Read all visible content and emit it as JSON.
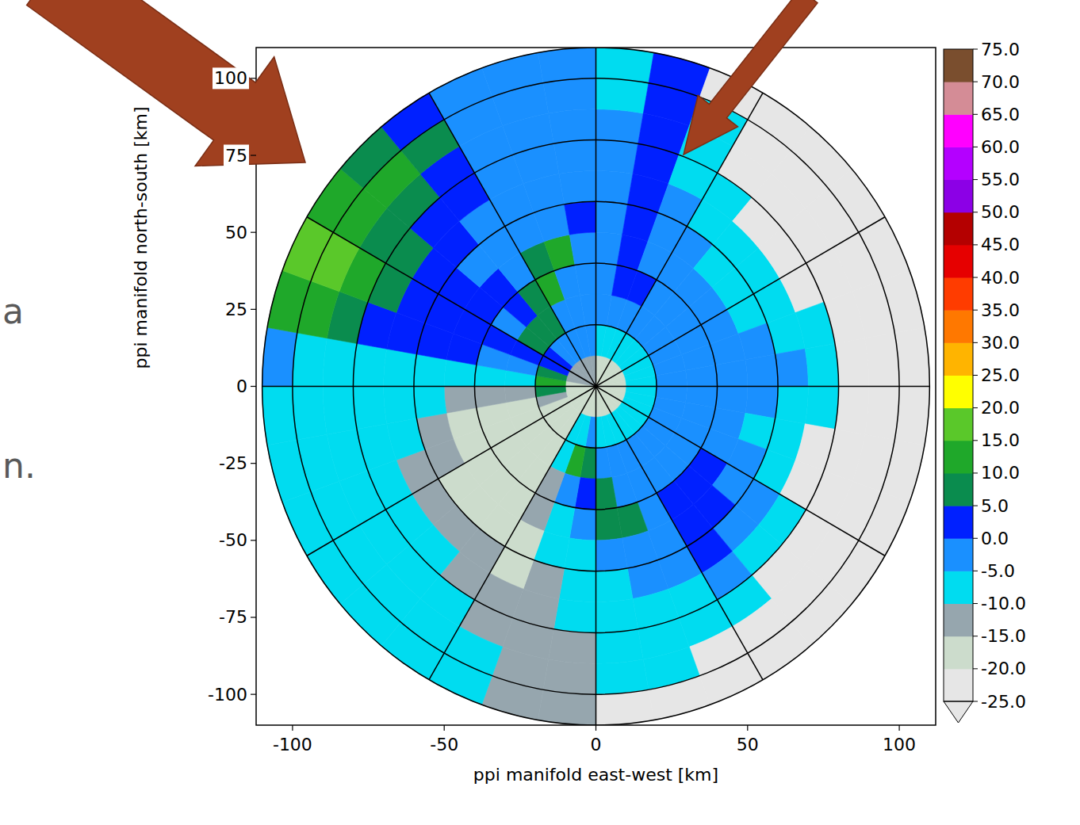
{
  "chart_data": {
    "type": "ppi",
    "x_label": "ppi manifold east-west [km]",
    "y_label": "ppi manifold north-south [km]",
    "xlim": [
      -112,
      112
    ],
    "ylim": [
      -110,
      110
    ],
    "xticks": [
      -100,
      -50,
      0,
      50,
      100
    ],
    "yticks": [
      -100,
      -75,
      -50,
      -25,
      0,
      25,
      50,
      75,
      100
    ],
    "grid": true,
    "rings": [
      20,
      40,
      60,
      80,
      100,
      110
    ],
    "spokes": [
      0,
      30,
      60,
      90,
      120,
      150,
      180,
      210,
      240,
      270,
      300,
      330
    ],
    "azimuth_edges": [
      0,
      10,
      20,
      30,
      40,
      50,
      60,
      70,
      80,
      90,
      100,
      110,
      120,
      130,
      140,
      150,
      160,
      170,
      180,
      190,
      200,
      210,
      220,
      230,
      240,
      250,
      260,
      270,
      280,
      290,
      300,
      310,
      320,
      330,
      340,
      350,
      360
    ],
    "range_edges": [
      0,
      10,
      20,
      30,
      40,
      50,
      60,
      70,
      80,
      90,
      100,
      110
    ],
    "cells": [
      [
        -18,
        -10,
        -5,
        -3,
        -3,
        -5,
        -5,
        -5,
        -5,
        -8,
        -8
      ],
      [
        -18,
        -10,
        -3,
        0,
        0,
        2,
        3,
        3,
        3,
        3,
        3
      ],
      [
        -18,
        -8,
        -3,
        0,
        -3,
        -5,
        -5,
        -8,
        -8,
        -8,
        -27
      ],
      [
        -18,
        -8,
        -3,
        -3,
        -5,
        -5,
        -8,
        -8,
        -27,
        -27,
        -27
      ],
      [
        -18,
        -8,
        -3,
        -3,
        -5,
        -8,
        -8,
        -27,
        -27,
        -27,
        -27
      ],
      [
        -18,
        -8,
        -5,
        -3,
        -5,
        -8,
        -10,
        -27,
        -27,
        -27,
        -27
      ],
      [
        -18,
        -10,
        -5,
        -5,
        -5,
        -8,
        -10,
        -27,
        -27,
        -27,
        -27
      ],
      [
        -18,
        -10,
        -5,
        -3,
        -5,
        -5,
        -8,
        -10,
        -27,
        -27,
        -27
      ],
      [
        -18,
        -10,
        -5,
        -5,
        -5,
        -3,
        -5,
        -8,
        -27,
        -27,
        -27
      ],
      [
        -18,
        -10,
        -5,
        -5,
        -5,
        -5,
        -8,
        -10,
        -27,
        -27,
        -27
      ],
      [
        -18,
        -10,
        -5,
        -5,
        -5,
        -8,
        -10,
        -27,
        -27,
        -27,
        -27
      ],
      [
        -18,
        -10,
        -5,
        -3,
        -3,
        -5,
        -8,
        -27,
        -27,
        -27,
        -27
      ],
      [
        -18,
        -10,
        -3,
        -3,
        0,
        -3,
        -5,
        -8,
        -27,
        -27,
        -27
      ],
      [
        -18,
        -10,
        -5,
        -3,
        0,
        0,
        -3,
        -8,
        -27,
        -27,
        -27
      ],
      [
        -18,
        -10,
        -5,
        -3,
        0,
        0,
        0,
        -5,
        -10,
        -27,
        -27
      ],
      [
        -18,
        -10,
        -5,
        -3,
        -3,
        -3,
        -5,
        -8,
        -10,
        -27,
        -27
      ],
      [
        -18,
        -10,
        -5,
        -3,
        5,
        -3,
        -5,
        -8,
        -10,
        -10,
        -27
      ],
      [
        -18,
        -8,
        -3,
        5,
        8,
        -5,
        -8,
        -10,
        -10,
        -10,
        -27
      ],
      [
        -18,
        -5,
        8,
        3,
        -5,
        -8,
        -10,
        -10,
        -12,
        -12,
        -12
      ],
      [
        -18,
        -8,
        10,
        -5,
        -8,
        -10,
        -12,
        -12,
        -12,
        -12,
        -12
      ],
      [
        -18,
        -10,
        -10,
        -12,
        -12,
        -17,
        -17,
        -12,
        -12,
        -10,
        -10
      ],
      [
        -20,
        -17,
        -17,
        -17,
        -17,
        -17,
        -12,
        -12,
        -10,
        -10,
        -10
      ],
      [
        -20,
        -17,
        -17,
        -17,
        -17,
        -17,
        -12,
        -10,
        -10,
        -10,
        -10
      ],
      [
        -20,
        -17,
        -17,
        -17,
        -17,
        -17,
        -12,
        -10,
        -10,
        -10,
        -10
      ],
      [
        -20,
        -17,
        -17,
        -17,
        -17,
        -12,
        -12,
        -10,
        -10,
        -8,
        -8
      ],
      [
        -18,
        -12,
        -17,
        -17,
        -17,
        -12,
        -10,
        -10,
        -10,
        -8,
        -8
      ],
      [
        -18,
        8,
        -12,
        -12,
        -12,
        -10,
        -10,
        -10,
        -8,
        -8,
        -8
      ],
      [
        -18,
        10,
        -10,
        -10,
        -8,
        -8,
        -8,
        -8,
        -8,
        -8,
        -5
      ],
      [
        -15,
        5,
        -5,
        -3,
        0,
        0,
        0,
        3,
        8,
        10,
        10
      ],
      [
        -15,
        3,
        0,
        0,
        0,
        3,
        3,
        8,
        12,
        15,
        15
      ],
      [
        -15,
        0,
        8,
        -3,
        0,
        0,
        3,
        5,
        8,
        10,
        10
      ],
      [
        -12,
        -3,
        5,
        3,
        0,
        -3,
        0,
        3,
        5,
        10,
        5
      ],
      [
        -12,
        -5,
        5,
        8,
        -3,
        -5,
        -3,
        0,
        3,
        5,
        3
      ],
      [
        -12,
        -5,
        -3,
        10,
        8,
        -5,
        -5,
        -3,
        -3,
        -5,
        -5
      ],
      [
        -15,
        -5,
        -3,
        -3,
        10,
        -3,
        -5,
        -5,
        -5,
        -5,
        -5
      ],
      [
        -15,
        -5,
        -3,
        -3,
        -3,
        3,
        -3,
        -5,
        -5,
        -5,
        -5
      ]
    ],
    "colorbar": {
      "range": [
        -25,
        75
      ],
      "ticks": [
        {
          "value": 75,
          "label": "75.0"
        },
        {
          "value": 70,
          "label": "70.0"
        },
        {
          "value": 65,
          "label": "65.0"
        },
        {
          "value": 60,
          "label": "60.0"
        },
        {
          "value": 55,
          "label": "55.0"
        },
        {
          "value": 50,
          "label": "50.0"
        },
        {
          "value": 45,
          "label": "45.0"
        },
        {
          "value": 40,
          "label": "40.0"
        },
        {
          "value": 35,
          "label": "35.0"
        },
        {
          "value": 30,
          "label": "30.0"
        },
        {
          "value": 25,
          "label": "25.0"
        },
        {
          "value": 20,
          "label": "20.0"
        },
        {
          "value": 15,
          "label": "15.0"
        },
        {
          "value": 10,
          "label": "10.0"
        },
        {
          "value": 5,
          "label": "5.0"
        },
        {
          "value": 0,
          "label": "0.0"
        },
        {
          "value": -5,
          "label": "-5.0"
        },
        {
          "value": -10,
          "label": "-10.0"
        },
        {
          "value": -15,
          "label": "-15.0"
        },
        {
          "value": -20,
          "label": "-20.0"
        },
        {
          "value": -25,
          "label": "-25.0"
        }
      ],
      "colors": [
        "#e6e6e6",
        "#ccdccc",
        "#96a6ae",
        "#00dcf0",
        "#1a90ff",
        "#0020ff",
        "#0a8c4e",
        "#1fa82a",
        "#5ac82a",
        "#ffff00",
        "#ffb400",
        "#ff7800",
        "#ff3c00",
        "#e60000",
        "#b40000",
        "#8c00e6",
        "#b400ff",
        "#ff00ff",
        "#d48c96",
        "#7a4e2e"
      ]
    }
  },
  "slide_text": [
    "a",
    "n."
  ]
}
